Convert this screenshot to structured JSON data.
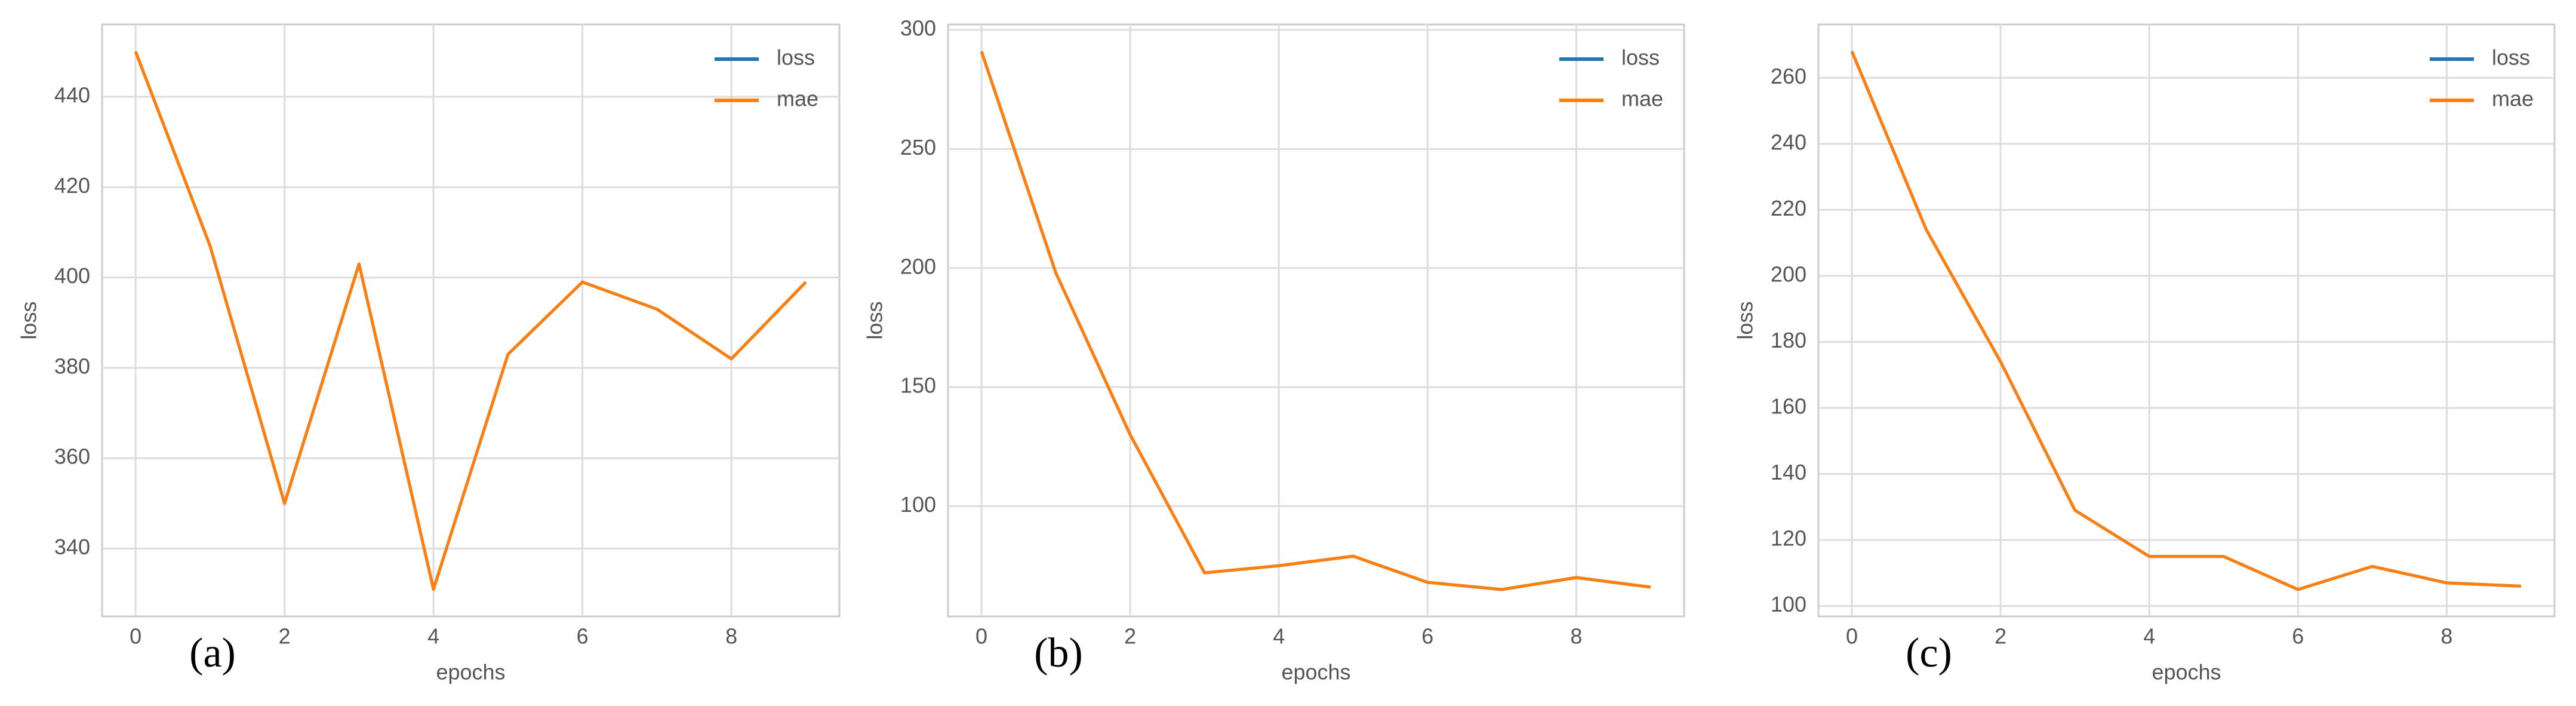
{
  "chart_data": [
    {
      "type": "line",
      "label": "(a)",
      "xlabel": "epochs",
      "ylabel": "loss",
      "x": [
        0,
        1,
        2,
        3,
        4,
        5,
        6,
        7,
        8,
        9
      ],
      "series": [
        {
          "name": "loss",
          "color": "#1f77b4",
          "values": [
            450,
            407,
            350,
            403,
            331,
            383,
            399,
            393,
            382,
            399
          ]
        },
        {
          "name": "mae",
          "color": "#ff7f0e",
          "values": [
            450,
            407,
            350,
            403,
            331,
            383,
            399,
            393,
            382,
            399
          ]
        }
      ],
      "xlim": [
        -0.45,
        9.45
      ],
      "xticks": [
        0,
        2,
        4,
        6,
        8
      ],
      "ylim": [
        325,
        456
      ],
      "yticks": [
        340,
        360,
        380,
        400,
        420,
        440
      ],
      "grid": true,
      "legend": "upper right"
    },
    {
      "type": "line",
      "label": "(b)",
      "xlabel": "epochs",
      "ylabel": "loss",
      "x": [
        0,
        1,
        2,
        3,
        4,
        5,
        6,
        7,
        8,
        9
      ],
      "series": [
        {
          "name": "loss",
          "color": "#1f77b4",
          "values": [
            291,
            198,
            130,
            72,
            75,
            79,
            68,
            65,
            70,
            66
          ]
        },
        {
          "name": "mae",
          "color": "#ff7f0e",
          "values": [
            291,
            198,
            130,
            72,
            75,
            79,
            68,
            65,
            70,
            66
          ]
        }
      ],
      "xlim": [
        -0.45,
        9.45
      ],
      "xticks": [
        0,
        2,
        4,
        6,
        8
      ],
      "ylim": [
        53.7,
        302.3
      ],
      "yticks": [
        100,
        150,
        200,
        250,
        300
      ],
      "grid": true,
      "legend": "upper right"
    },
    {
      "type": "line",
      "label": "(c)",
      "xlabel": "epochs",
      "ylabel": "loss",
      "x": [
        0,
        1,
        2,
        3,
        4,
        5,
        6,
        7,
        8,
        9
      ],
      "series": [
        {
          "name": "loss",
          "color": "#1f77b4",
          "values": [
            268,
            214,
            174,
            129,
            115,
            115,
            105,
            112,
            107,
            106
          ]
        },
        {
          "name": "mae",
          "color": "#ff7f0e",
          "values": [
            268,
            214,
            174,
            129,
            115,
            115,
            105,
            112,
            107,
            106
          ]
        }
      ],
      "xlim": [
        -0.45,
        9.45
      ],
      "xticks": [
        0,
        2,
        4,
        6,
        8
      ],
      "ylim": [
        96.85,
        276.15
      ],
      "yticks": [
        100,
        120,
        140,
        160,
        180,
        200,
        220,
        240,
        260
      ],
      "grid": true,
      "legend": "upper right"
    }
  ]
}
